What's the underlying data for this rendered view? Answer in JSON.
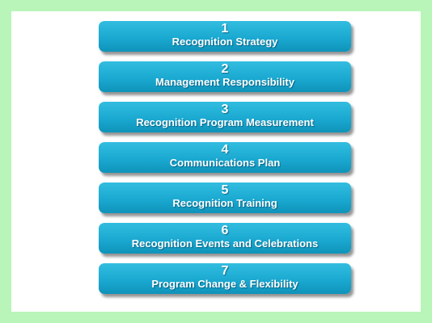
{
  "steps": [
    {
      "number": "1",
      "title": "Recognition Strategy"
    },
    {
      "number": "2",
      "title": "Management Responsibility"
    },
    {
      "number": "3",
      "title": "Recognition Program Measurement"
    },
    {
      "number": "4",
      "title": "Communications Plan"
    },
    {
      "number": "5",
      "title": "Recognition Training"
    },
    {
      "number": "6",
      "title": "Recognition Events and Celebrations"
    },
    {
      "number": "7",
      "title": "Program Change & Flexibility"
    }
  ],
  "colors": {
    "border": "#b9f5b9",
    "panel": "#ffffff",
    "box": "#1aa9d1",
    "text": "#ffffff"
  }
}
